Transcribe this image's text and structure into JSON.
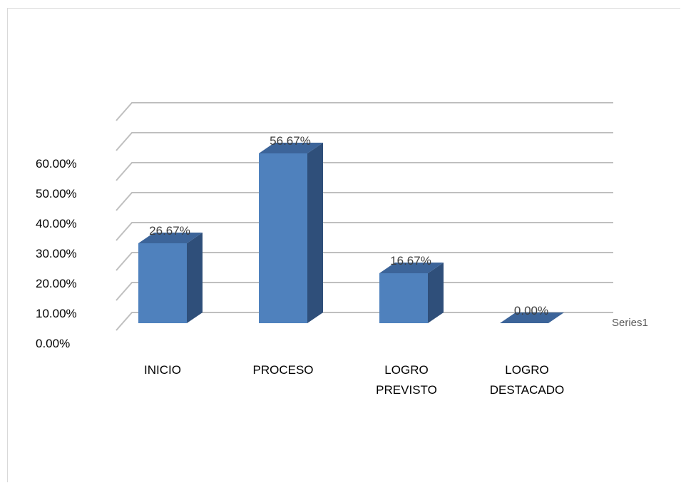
{
  "chart_data": {
    "type": "bar",
    "bar_style": "3d-column",
    "categories": [
      [
        "INICIO"
      ],
      [
        "PROCESO"
      ],
      [
        "LOGRO",
        "PREVISTO"
      ],
      [
        "LOGRO",
        "DESTACADO"
      ]
    ],
    "series": [
      {
        "name": "Series1",
        "values": [
          26.67,
          56.67,
          16.67,
          0.0
        ],
        "color": "#4f81bd"
      }
    ],
    "data_labels": [
      "26.67%",
      "56.67%",
      "16.67%",
      "0.00%"
    ],
    "y_ticks": [
      "0.00%",
      "10.00%",
      "20.00%",
      "30.00%",
      "40.00%",
      "50.00%",
      "60.00%"
    ],
    "ylim": [
      0,
      60
    ],
    "grid": true,
    "legend_position": "right",
    "colors": {
      "bar_front": "#4f81bd",
      "bar_side": "#2f4f7a",
      "bar_top": "#3c6499",
      "grid": "#bfbfbf"
    }
  }
}
